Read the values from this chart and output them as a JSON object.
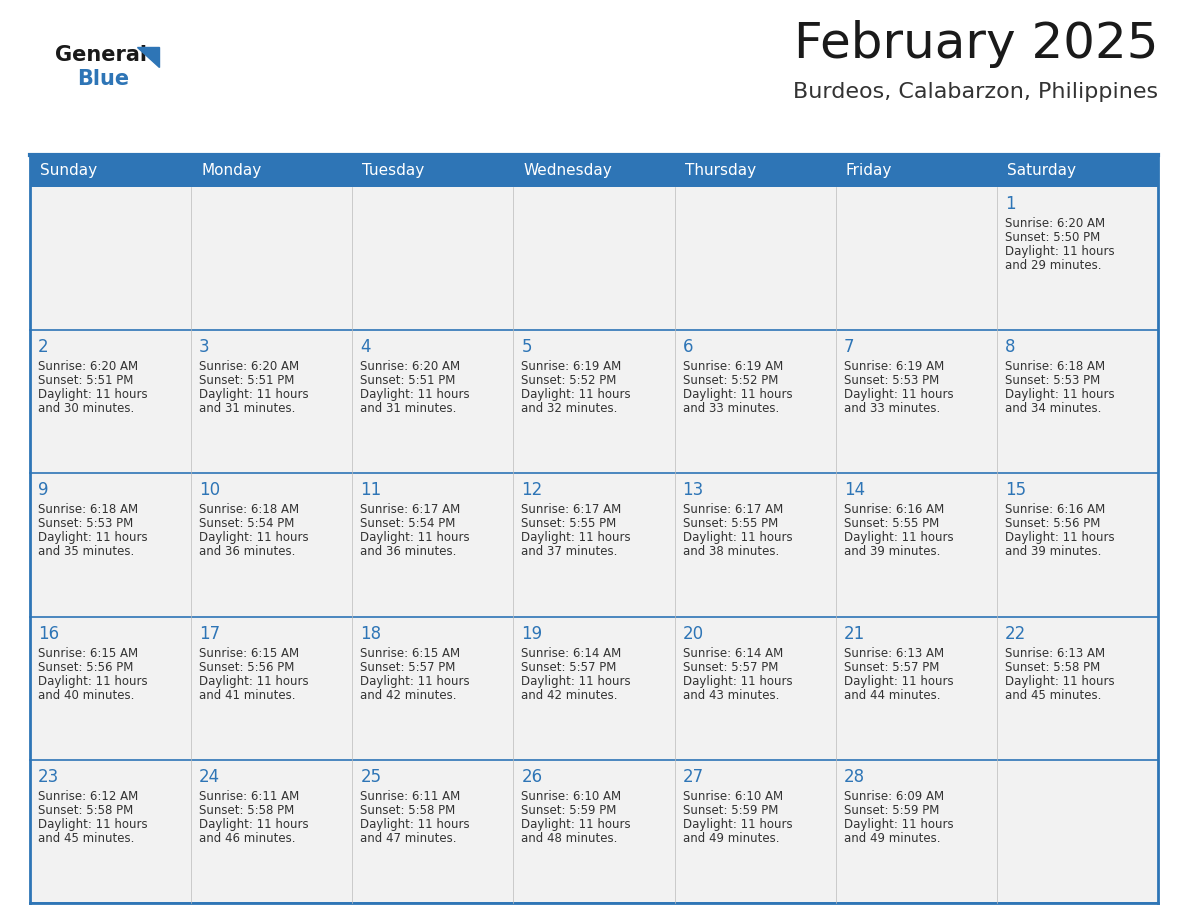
{
  "title": "February 2025",
  "subtitle": "Burdeos, Calabarzon, Philippines",
  "header_bg": "#2E75B6",
  "header_text": "#FFFFFF",
  "cell_bg": "#F2F2F2",
  "border_color": "#2E75B6",
  "text_color": "#333333",
  "day_number_color": "#2E75B6",
  "day_headers": [
    "Sunday",
    "Monday",
    "Tuesday",
    "Wednesday",
    "Thursday",
    "Friday",
    "Saturday"
  ],
  "calendar_data": [
    [
      {
        "day": "",
        "sunrise": "",
        "sunset": "",
        "daylight_h": "",
        "daylight_m": ""
      },
      {
        "day": "",
        "sunrise": "",
        "sunset": "",
        "daylight_h": "",
        "daylight_m": ""
      },
      {
        "day": "",
        "sunrise": "",
        "sunset": "",
        "daylight_h": "",
        "daylight_m": ""
      },
      {
        "day": "",
        "sunrise": "",
        "sunset": "",
        "daylight_h": "",
        "daylight_m": ""
      },
      {
        "day": "",
        "sunrise": "",
        "sunset": "",
        "daylight_h": "",
        "daylight_m": ""
      },
      {
        "day": "",
        "sunrise": "",
        "sunset": "",
        "daylight_h": "",
        "daylight_m": ""
      },
      {
        "day": "1",
        "sunrise": "6:20 AM",
        "sunset": "5:50 PM",
        "daylight_h": "11 hours",
        "daylight_m": "and 29 minutes."
      }
    ],
    [
      {
        "day": "2",
        "sunrise": "6:20 AM",
        "sunset": "5:51 PM",
        "daylight_h": "11 hours",
        "daylight_m": "and 30 minutes."
      },
      {
        "day": "3",
        "sunrise": "6:20 AM",
        "sunset": "5:51 PM",
        "daylight_h": "11 hours",
        "daylight_m": "and 31 minutes."
      },
      {
        "day": "4",
        "sunrise": "6:20 AM",
        "sunset": "5:51 PM",
        "daylight_h": "11 hours",
        "daylight_m": "and 31 minutes."
      },
      {
        "day": "5",
        "sunrise": "6:19 AM",
        "sunset": "5:52 PM",
        "daylight_h": "11 hours",
        "daylight_m": "and 32 minutes."
      },
      {
        "day": "6",
        "sunrise": "6:19 AM",
        "sunset": "5:52 PM",
        "daylight_h": "11 hours",
        "daylight_m": "and 33 minutes."
      },
      {
        "day": "7",
        "sunrise": "6:19 AM",
        "sunset": "5:53 PM",
        "daylight_h": "11 hours",
        "daylight_m": "and 33 minutes."
      },
      {
        "day": "8",
        "sunrise": "6:18 AM",
        "sunset": "5:53 PM",
        "daylight_h": "11 hours",
        "daylight_m": "and 34 minutes."
      }
    ],
    [
      {
        "day": "9",
        "sunrise": "6:18 AM",
        "sunset": "5:53 PM",
        "daylight_h": "11 hours",
        "daylight_m": "and 35 minutes."
      },
      {
        "day": "10",
        "sunrise": "6:18 AM",
        "sunset": "5:54 PM",
        "daylight_h": "11 hours",
        "daylight_m": "and 36 minutes."
      },
      {
        "day": "11",
        "sunrise": "6:17 AM",
        "sunset": "5:54 PM",
        "daylight_h": "11 hours",
        "daylight_m": "and 36 minutes."
      },
      {
        "day": "12",
        "sunrise": "6:17 AM",
        "sunset": "5:55 PM",
        "daylight_h": "11 hours",
        "daylight_m": "and 37 minutes."
      },
      {
        "day": "13",
        "sunrise": "6:17 AM",
        "sunset": "5:55 PM",
        "daylight_h": "11 hours",
        "daylight_m": "and 38 minutes."
      },
      {
        "day": "14",
        "sunrise": "6:16 AM",
        "sunset": "5:55 PM",
        "daylight_h": "11 hours",
        "daylight_m": "and 39 minutes."
      },
      {
        "day": "15",
        "sunrise": "6:16 AM",
        "sunset": "5:56 PM",
        "daylight_h": "11 hours",
        "daylight_m": "and 39 minutes."
      }
    ],
    [
      {
        "day": "16",
        "sunrise": "6:15 AM",
        "sunset": "5:56 PM",
        "daylight_h": "11 hours",
        "daylight_m": "and 40 minutes."
      },
      {
        "day": "17",
        "sunrise": "6:15 AM",
        "sunset": "5:56 PM",
        "daylight_h": "11 hours",
        "daylight_m": "and 41 minutes."
      },
      {
        "day": "18",
        "sunrise": "6:15 AM",
        "sunset": "5:57 PM",
        "daylight_h": "11 hours",
        "daylight_m": "and 42 minutes."
      },
      {
        "day": "19",
        "sunrise": "6:14 AM",
        "sunset": "5:57 PM",
        "daylight_h": "11 hours",
        "daylight_m": "and 42 minutes."
      },
      {
        "day": "20",
        "sunrise": "6:14 AM",
        "sunset": "5:57 PM",
        "daylight_h": "11 hours",
        "daylight_m": "and 43 minutes."
      },
      {
        "day": "21",
        "sunrise": "6:13 AM",
        "sunset": "5:57 PM",
        "daylight_h": "11 hours",
        "daylight_m": "and 44 minutes."
      },
      {
        "day": "22",
        "sunrise": "6:13 AM",
        "sunset": "5:58 PM",
        "daylight_h": "11 hours",
        "daylight_m": "and 45 minutes."
      }
    ],
    [
      {
        "day": "23",
        "sunrise": "6:12 AM",
        "sunset": "5:58 PM",
        "daylight_h": "11 hours",
        "daylight_m": "and 45 minutes."
      },
      {
        "day": "24",
        "sunrise": "6:11 AM",
        "sunset": "5:58 PM",
        "daylight_h": "11 hours",
        "daylight_m": "and 46 minutes."
      },
      {
        "day": "25",
        "sunrise": "6:11 AM",
        "sunset": "5:58 PM",
        "daylight_h": "11 hours",
        "daylight_m": "and 47 minutes."
      },
      {
        "day": "26",
        "sunrise": "6:10 AM",
        "sunset": "5:59 PM",
        "daylight_h": "11 hours",
        "daylight_m": "and 48 minutes."
      },
      {
        "day": "27",
        "sunrise": "6:10 AM",
        "sunset": "5:59 PM",
        "daylight_h": "11 hours",
        "daylight_m": "and 49 minutes."
      },
      {
        "day": "28",
        "sunrise": "6:09 AM",
        "sunset": "5:59 PM",
        "daylight_h": "11 hours",
        "daylight_m": "and 49 minutes."
      },
      {
        "day": "",
        "sunrise": "",
        "sunset": "",
        "daylight_h": "",
        "daylight_m": ""
      }
    ]
  ],
  "logo_general_color": "#1a1a1a",
  "logo_blue_color": "#2E75B6",
  "title_fontsize": 36,
  "subtitle_fontsize": 16,
  "header_fontsize": 11,
  "day_num_fontsize": 12,
  "cell_text_fontsize": 8.5
}
